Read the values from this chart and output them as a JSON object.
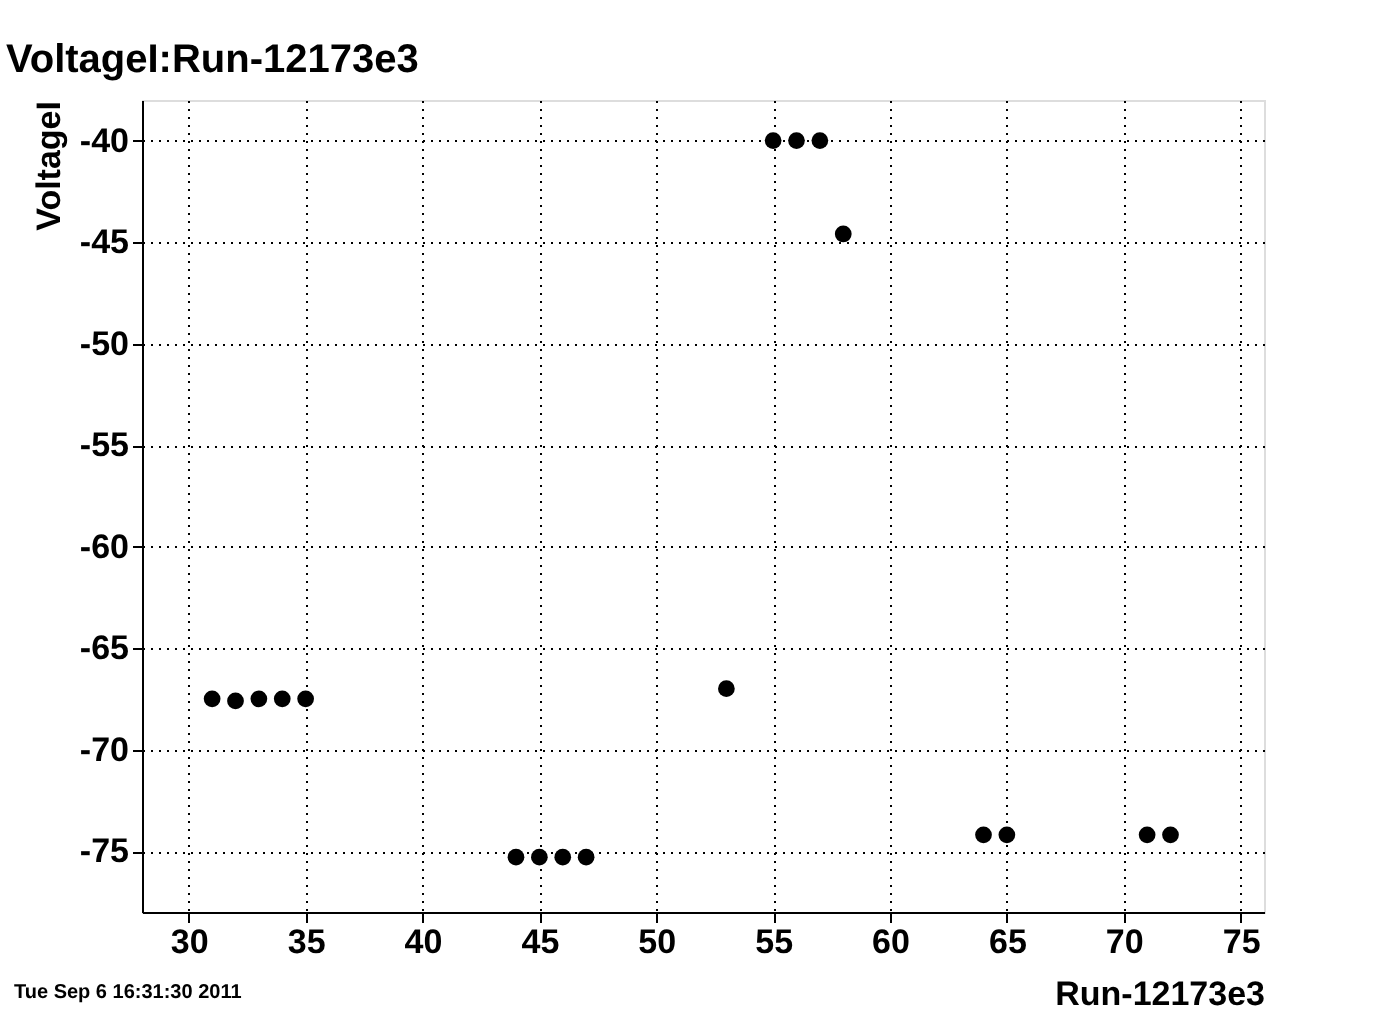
{
  "chart_data": {
    "type": "scatter",
    "title": "VoltageI:Run-12173e3",
    "xlabel": "Run-12173e3",
    "ylabel": "VoltageI",
    "annotations": [
      "Tue Sep  6 16:31:30 2011"
    ],
    "x": [
      31,
      32,
      33,
      34,
      35,
      44,
      45,
      46,
      47,
      53,
      55,
      56,
      57,
      58,
      64,
      65,
      71,
      72
    ],
    "values": [
      -67.5,
      -67.6,
      -67.5,
      -67.5,
      -67.5,
      -75.3,
      -75.3,
      -75.3,
      -75.3,
      -67.0,
      -40.0,
      -40.0,
      -40.0,
      -44.6,
      -74.2,
      -74.2,
      -74.2,
      -74.2
    ],
    "color": "#000000",
    "marker": "circle",
    "grid": true,
    "xlim": [
      28,
      76
    ],
    "ylim": [
      -78,
      -38
    ],
    "xticks": [
      30,
      35,
      40,
      45,
      50,
      55,
      60,
      65,
      70,
      75
    ],
    "yticks": [
      -75,
      -70,
      -65,
      -60,
      -55,
      -50,
      -45,
      -40
    ]
  }
}
